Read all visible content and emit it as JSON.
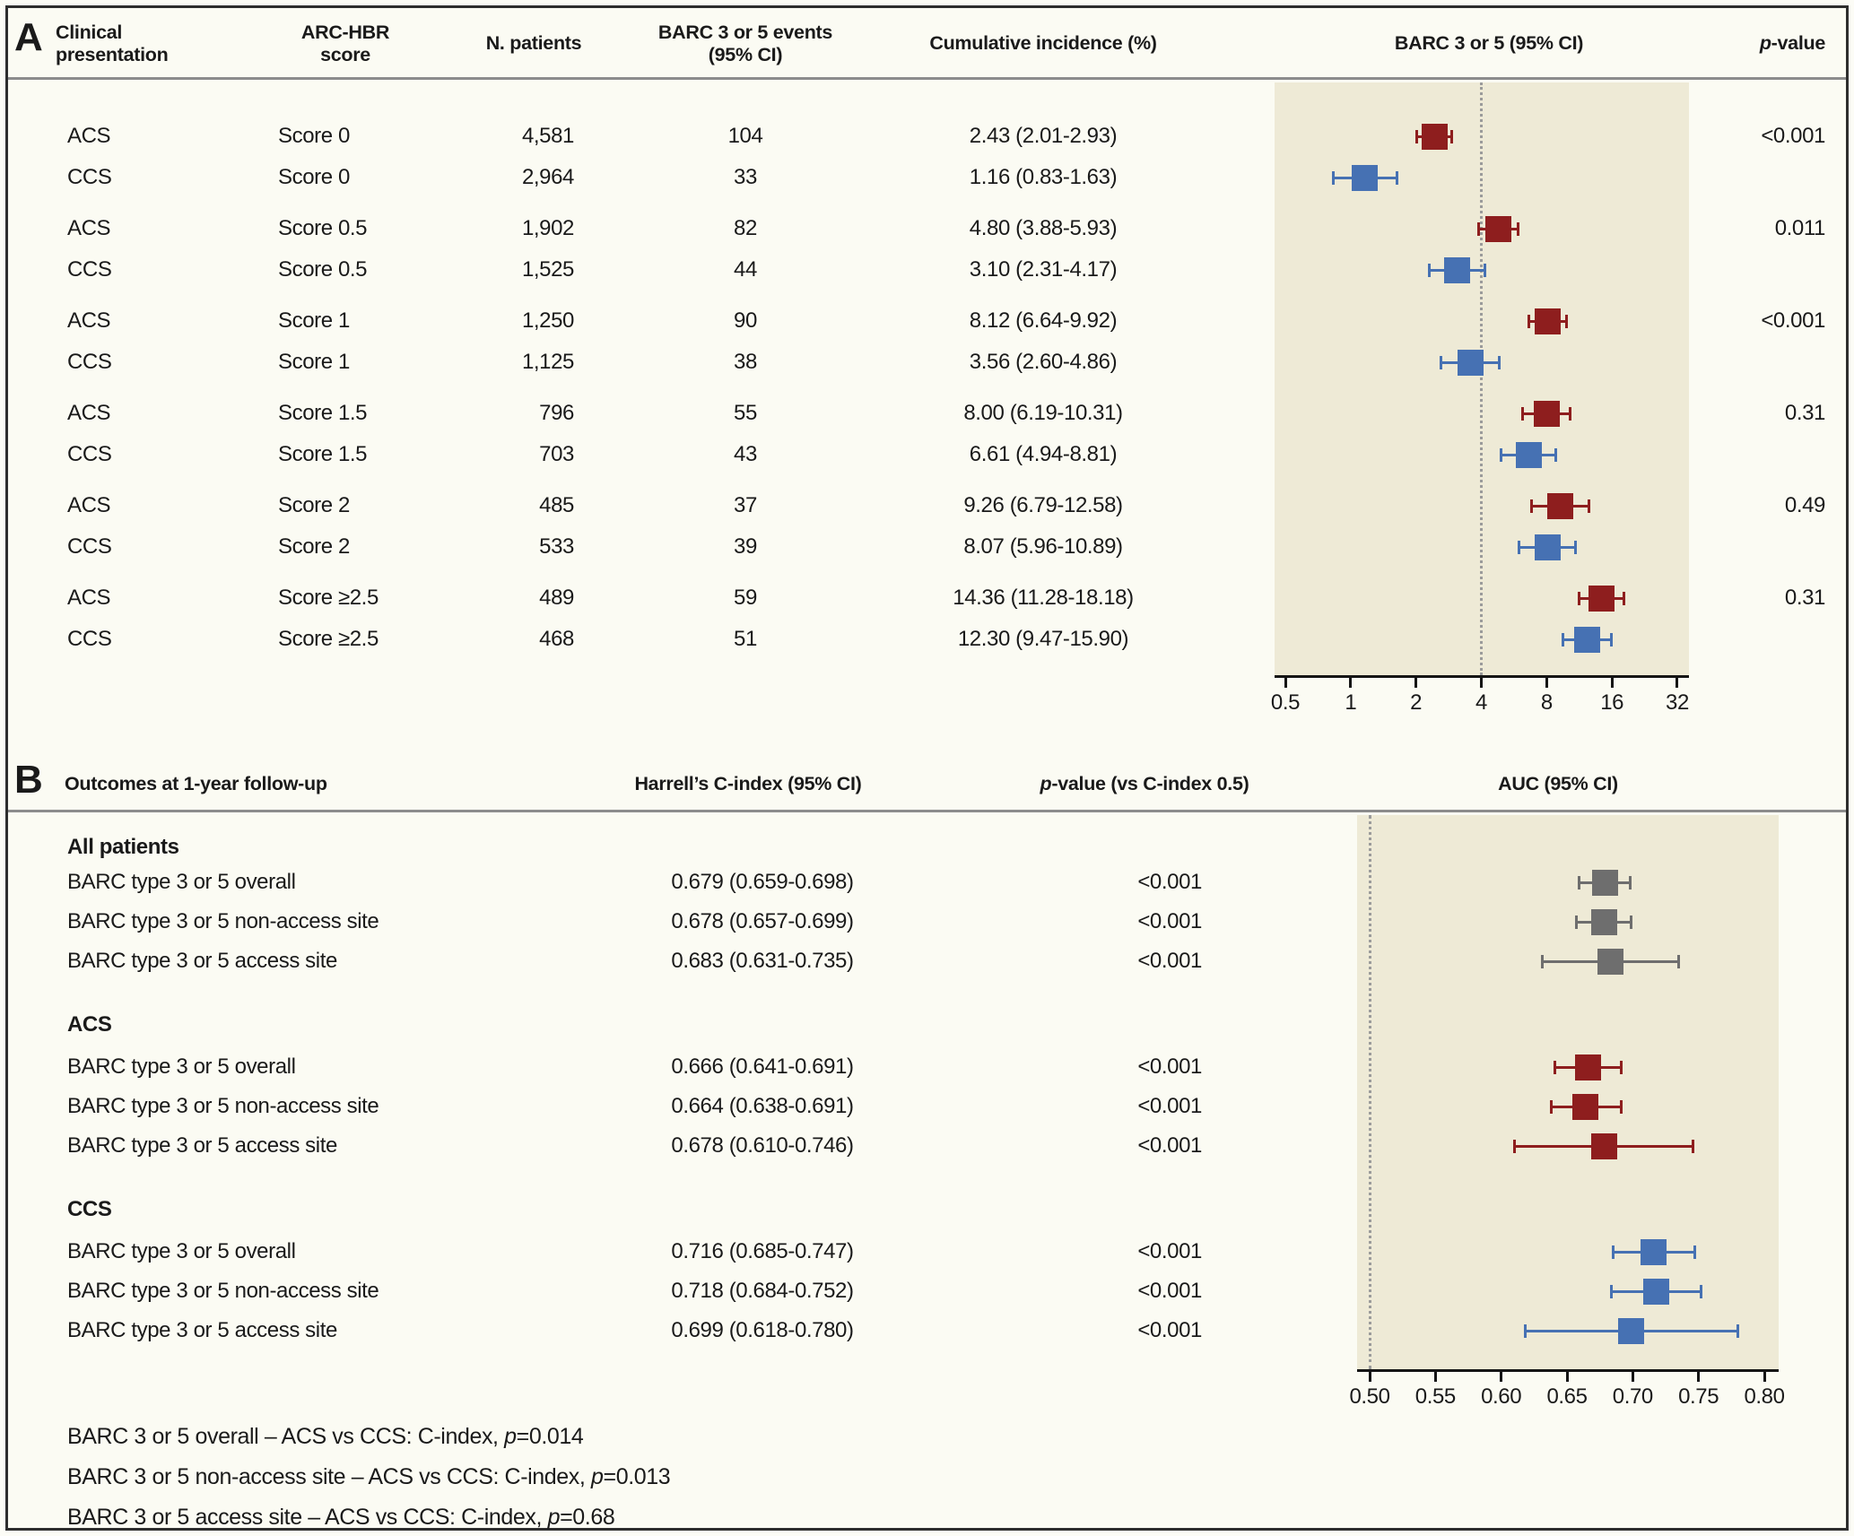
{
  "colors": {
    "acs": "#8e1e1e",
    "ccs": "#4671b3",
    "all": "#6e6e6e",
    "plot_bg": "#eeead6",
    "reference_line": "#9b9b9b",
    "axis": "#151515",
    "separator": "#8c8c8c"
  },
  "panel_a": {
    "label": "A",
    "headers": {
      "clinical": "Clinical\npresentation",
      "score": "ARC-HBR\nscore",
      "n_patients": "N. patients",
      "events": "BARC 3 or 5 events\n(95% CI)",
      "cum_incidence": "Cumulative incidence (%)",
      "forest": "BARC 3 or 5 (95% CI)",
      "p_italic": "p",
      "p_rest": "-value"
    }
  },
  "panel_b": {
    "label": "B",
    "headers": {
      "outcomes": "Outcomes at 1-year follow-up",
      "c_index": "Harrell’s C-index (95% CI)",
      "p_italic": "p",
      "p_rest": "-value (vs C-index 0.5)",
      "auc": "AUC (95% CI)"
    },
    "footnotes": [
      {
        "before": "BARC 3 or 5 overall – ACS vs CCS: C-index, ",
        "p_italic": "p",
        "after": "=0.014"
      },
      {
        "before": "BARC 3 or 5 non-access site – ACS vs CCS: C-index, ",
        "p_italic": "p",
        "after": "=0.013"
      },
      {
        "before": "BARC 3 or 5 access site – ACS vs CCS: C-index, ",
        "p_italic": "p",
        "after": "=0.68"
      }
    ]
  },
  "chart_data": [
    {
      "id": "panel_a_forest",
      "type": "forest",
      "title": "BARC 3 or 5 (95% CI)",
      "x_axis": {
        "scale": "log2",
        "min": 0.5,
        "max": 32,
        "ticks": [
          0.5,
          1,
          2,
          4,
          8,
          16,
          32
        ],
        "tick_labels": [
          "0.5",
          "1",
          "2",
          "4",
          "8",
          "16",
          "32"
        ],
        "reference_line": 4
      },
      "rows": [
        {
          "presentation": "ACS",
          "score": "Score 0",
          "n_patients": "4,581",
          "events": "104",
          "cum_incidence": "2.43 (2.01-2.93)",
          "est": 2.43,
          "lo": 2.01,
          "hi": 2.93,
          "p_value": "<0.001",
          "color": "acs"
        },
        {
          "presentation": "CCS",
          "score": "Score 0",
          "n_patients": "2,964",
          "events": "33",
          "cum_incidence": "1.16 (0.83-1.63)",
          "est": 1.16,
          "lo": 0.83,
          "hi": 1.63,
          "p_value": null,
          "color": "ccs"
        },
        {
          "presentation": "ACS",
          "score": "Score 0.5",
          "n_patients": "1,902",
          "events": "82",
          "cum_incidence": "4.80 (3.88-5.93)",
          "est": 4.8,
          "lo": 3.88,
          "hi": 5.93,
          "p_value": "0.011",
          "color": "acs"
        },
        {
          "presentation": "CCS",
          "score": "Score 0.5",
          "n_patients": "1,525",
          "events": "44",
          "cum_incidence": "3.10 (2.31-4.17)",
          "est": 3.1,
          "lo": 2.31,
          "hi": 4.17,
          "p_value": null,
          "color": "ccs"
        },
        {
          "presentation": "ACS",
          "score": "Score 1",
          "n_patients": "1,250",
          "events": "90",
          "cum_incidence": "8.12 (6.64-9.92)",
          "est": 8.12,
          "lo": 6.64,
          "hi": 9.92,
          "p_value": "<0.001",
          "color": "acs"
        },
        {
          "presentation": "CCS",
          "score": "Score 1",
          "n_patients": "1,125",
          "events": "38",
          "cum_incidence": "3.56 (2.60-4.86)",
          "est": 3.56,
          "lo": 2.6,
          "hi": 4.86,
          "p_value": null,
          "color": "ccs"
        },
        {
          "presentation": "ACS",
          "score": "Score 1.5",
          "n_patients": "796",
          "events": "55",
          "cum_incidence": "8.00 (6.19-10.31)",
          "est": 8.0,
          "lo": 6.19,
          "hi": 10.31,
          "p_value": "0.31",
          "color": "acs"
        },
        {
          "presentation": "CCS",
          "score": "Score 1.5",
          "n_patients": "703",
          "events": "43",
          "cum_incidence": "6.61 (4.94-8.81)",
          "est": 6.61,
          "lo": 4.94,
          "hi": 8.81,
          "p_value": null,
          "color": "ccs"
        },
        {
          "presentation": "ACS",
          "score": "Score 2",
          "n_patients": "485",
          "events": "37",
          "cum_incidence": "9.26 (6.79-12.58)",
          "est": 9.26,
          "lo": 6.79,
          "hi": 12.58,
          "p_value": "0.49",
          "color": "acs"
        },
        {
          "presentation": "CCS",
          "score": "Score 2",
          "n_patients": "533",
          "events": "39",
          "cum_incidence": "8.07 (5.96-10.89)",
          "est": 8.07,
          "lo": 5.96,
          "hi": 10.89,
          "p_value": null,
          "color": "ccs"
        },
        {
          "presentation": "ACS",
          "score": "Score ≥2.5",
          "n_patients": "489",
          "events": "59",
          "cum_incidence": "14.36 (11.28-18.18)",
          "est": 14.36,
          "lo": 11.28,
          "hi": 18.18,
          "p_value": "0.31",
          "color": "acs"
        },
        {
          "presentation": "CCS",
          "score": "Score ≥2.5",
          "n_patients": "468",
          "events": "51",
          "cum_incidence": "12.30 (9.47-15.90)",
          "est": 12.3,
          "lo": 9.47,
          "hi": 15.9,
          "p_value": null,
          "color": "ccs"
        }
      ]
    },
    {
      "id": "panel_b_forest",
      "type": "forest",
      "title": "AUC (95% CI)",
      "x_axis": {
        "scale": "linear",
        "min": 0.5,
        "max": 0.8,
        "ticks": [
          0.5,
          0.55,
          0.6,
          0.65,
          0.7,
          0.75,
          0.8
        ],
        "tick_labels": [
          "0.50",
          "0.55",
          "0.60",
          "0.65",
          "0.70",
          "0.75",
          "0.80"
        ],
        "reference_line": 0.5
      },
      "groups": [
        {
          "name": "All patients",
          "color": "all",
          "rows": [
            {
              "outcome": "BARC type 3 or 5 overall",
              "c_index": "0.679 (0.659-0.698)",
              "est": 0.679,
              "lo": 0.659,
              "hi": 0.698,
              "p_value": "<0.001"
            },
            {
              "outcome": "BARC type 3 or 5 non-access site",
              "c_index": "0.678 (0.657-0.699)",
              "est": 0.678,
              "lo": 0.657,
              "hi": 0.699,
              "p_value": "<0.001"
            },
            {
              "outcome": "BARC type 3 or 5 access site",
              "c_index": "0.683 (0.631-0.735)",
              "est": 0.683,
              "lo": 0.631,
              "hi": 0.735,
              "p_value": "<0.001"
            }
          ]
        },
        {
          "name": "ACS",
          "color": "acs",
          "rows": [
            {
              "outcome": "BARC type 3 or 5 overall",
              "c_index": "0.666 (0.641-0.691)",
              "est": 0.666,
              "lo": 0.641,
              "hi": 0.691,
              "p_value": "<0.001"
            },
            {
              "outcome": "BARC type 3 or 5 non-access site",
              "c_index": "0.664 (0.638-0.691)",
              "est": 0.664,
              "lo": 0.638,
              "hi": 0.691,
              "p_value": "<0.001"
            },
            {
              "outcome": "BARC type 3 or 5 access site",
              "c_index": "0.678 (0.610-0.746)",
              "est": 0.678,
              "lo": 0.61,
              "hi": 0.746,
              "p_value": "<0.001"
            }
          ]
        },
        {
          "name": "CCS",
          "color": "ccs",
          "rows": [
            {
              "outcome": "BARC type 3 or 5 overall",
              "c_index": "0.716 (0.685-0.747)",
              "est": 0.716,
              "lo": 0.685,
              "hi": 0.747,
              "p_value": "<0.001"
            },
            {
              "outcome": "BARC type 3 or 5 non-access site",
              "c_index": "0.718 (0.684-0.752)",
              "est": 0.718,
              "lo": 0.684,
              "hi": 0.752,
              "p_value": "<0.001"
            },
            {
              "outcome": "BARC type 3 or 5 access site",
              "c_index": "0.699 (0.618-0.780)",
              "est": 0.699,
              "lo": 0.618,
              "hi": 0.78,
              "p_value": "<0.001"
            }
          ]
        }
      ]
    }
  ]
}
